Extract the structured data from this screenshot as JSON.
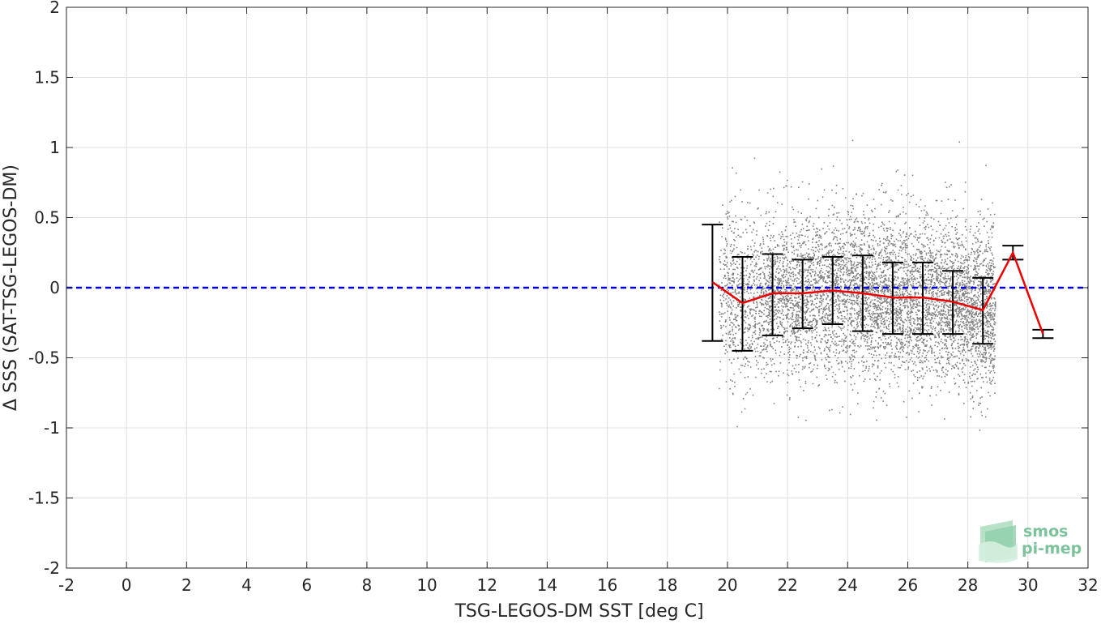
{
  "chart_data": {
    "type": "scatter",
    "title": "",
    "xlabel": "TSG-LEGOS-DM SST [deg C]",
    "ylabel": "Δ SSS (SAT-TSG-LEGOS-DM)",
    "xlim": [
      -2,
      32
    ],
    "ylim": [
      -2,
      2
    ],
    "xticks": [
      -2,
      0,
      2,
      4,
      6,
      8,
      10,
      12,
      14,
      16,
      18,
      20,
      22,
      24,
      26,
      28,
      30,
      32
    ],
    "xtick_labels": [
      "-2",
      "0",
      "2",
      "4",
      "6",
      "8",
      "10",
      "12",
      "14",
      "16",
      "18",
      "20",
      "22",
      "24",
      "26",
      "28",
      "30",
      "32"
    ],
    "yticks": [
      2,
      1.5,
      1,
      0.5,
      0,
      -0.5,
      -1,
      -1.5,
      -2
    ],
    "ytick_labels": [
      "2",
      "1.5",
      "1",
      "0.5",
      "0",
      "-0.5",
      "-1",
      "-1.5",
      "-2"
    ],
    "grid": true,
    "reference_line": {
      "y": 0,
      "style": "dashed",
      "color": "#0000dd"
    },
    "scatter_color": "#808080",
    "scatter_cloud": {
      "x_range": [
        19.7,
        28.9
      ],
      "center": -0.05,
      "spread": 0.33
    },
    "mean_line": {
      "color": "#ee0000",
      "x": [
        19.5,
        20.5,
        21.5,
        22.5,
        23.5,
        24.5,
        25.5,
        26.5,
        27.5,
        28.5,
        29.5,
        30.5
      ],
      "y": [
        0.04,
        -0.11,
        -0.04,
        -0.04,
        -0.02,
        -0.04,
        -0.07,
        -0.07,
        -0.1,
        -0.16,
        0.25,
        -0.33
      ]
    },
    "error_bars": {
      "color": "#000000",
      "x": [
        19.5,
        20.5,
        21.5,
        22.5,
        23.5,
        24.5,
        25.5,
        26.5,
        27.5,
        28.5,
        29.5,
        30.5
      ],
      "lower": [
        -0.38,
        -0.45,
        -0.34,
        -0.29,
        -0.26,
        -0.31,
        -0.33,
        -0.33,
        -0.33,
        -0.4,
        0.2,
        -0.36
      ],
      "upper": [
        0.45,
        0.22,
        0.24,
        0.2,
        0.22,
        0.23,
        0.18,
        0.18,
        0.12,
        0.07,
        0.3,
        -0.3
      ]
    }
  },
  "logo": {
    "line1": "smos",
    "line2": "pi-mep",
    "color": "#7cc39b"
  }
}
